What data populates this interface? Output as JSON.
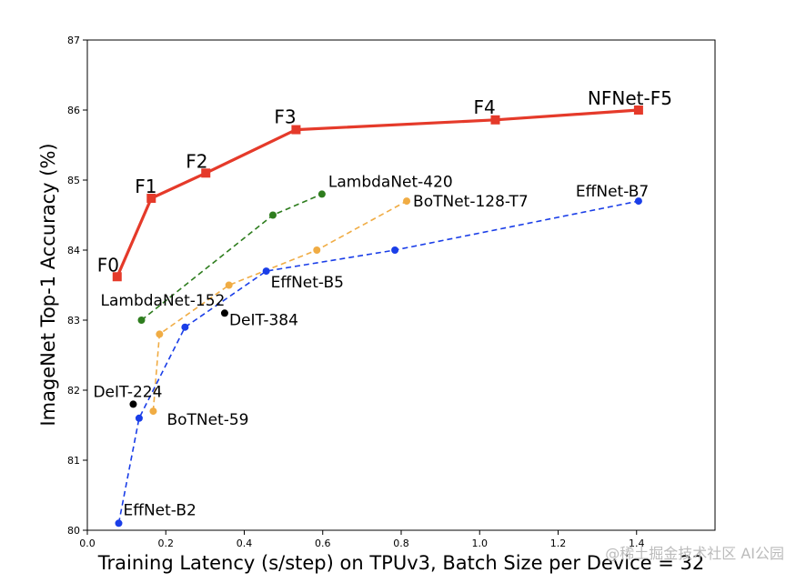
{
  "chart_data": {
    "type": "line",
    "title": "",
    "xlabel": "Training Latency (s/step) on TPUv3, Batch Size per Device = 32",
    "ylabel": "ImageNet Top-1 Accuracy (%)",
    "xlim": [
      0.0,
      1.6
    ],
    "ylim": [
      80,
      87
    ],
    "x_ticks": [
      "0.0",
      "0.2",
      "0.4",
      "0.6",
      "0.8",
      "1.0",
      "1.2",
      "1.4"
    ],
    "y_ticks": [
      "80",
      "81",
      "82",
      "83",
      "84",
      "85",
      "86",
      "87"
    ],
    "grid": false,
    "series": [
      {
        "name": "NFNet",
        "color": "#e53a2a",
        "style": "solid",
        "marker": "square",
        "x": [
          0.076,
          0.163,
          0.302,
          0.532,
          1.04,
          1.405
        ],
        "y": [
          83.62,
          84.74,
          85.1,
          85.72,
          85.86,
          86.0
        ],
        "labels": [
          "F0",
          "F1",
          "F2",
          "F3",
          "F4",
          "NFNet-F5"
        ]
      },
      {
        "name": "LambdaNet",
        "color": "#2e7d1e",
        "style": "dashed",
        "marker": "circle",
        "x": [
          0.138,
          0.473,
          0.598
        ],
        "y": [
          83.0,
          84.5,
          84.8
        ],
        "labels": [
          "LambdaNet-152",
          "",
          "LambdaNet-420"
        ]
      },
      {
        "name": "BoTNet",
        "color": "#f0ac44",
        "style": "dashed",
        "marker": "circle",
        "x": [
          0.168,
          0.184,
          0.361,
          0.585,
          0.814
        ],
        "y": [
          81.7,
          82.8,
          83.5,
          84.0,
          84.7
        ],
        "labels": [
          "BoTNet-59",
          "",
          "",
          "",
          "BoTNet-128-T7"
        ]
      },
      {
        "name": "EffNet",
        "color": "#1a3ee8",
        "style": "dashed",
        "marker": "circle",
        "x": [
          0.08,
          0.132,
          0.249,
          0.456,
          0.784,
          1.405
        ],
        "y": [
          80.1,
          81.6,
          82.9,
          83.7,
          84.0,
          84.7
        ],
        "labels": [
          "EffNet-B2",
          "",
          "",
          "EffNet-B5",
          "",
          "EffNet-B7"
        ]
      },
      {
        "name": "DeiT",
        "color": "#000000",
        "style": "none",
        "marker": "circle",
        "x": [
          0.117,
          0.35
        ],
        "y": [
          81.8,
          83.1
        ],
        "labels": [
          "DeIT-224",
          "DeIT-384"
        ]
      }
    ]
  },
  "watermark": "@稀土掘金技术社区 AI公园"
}
